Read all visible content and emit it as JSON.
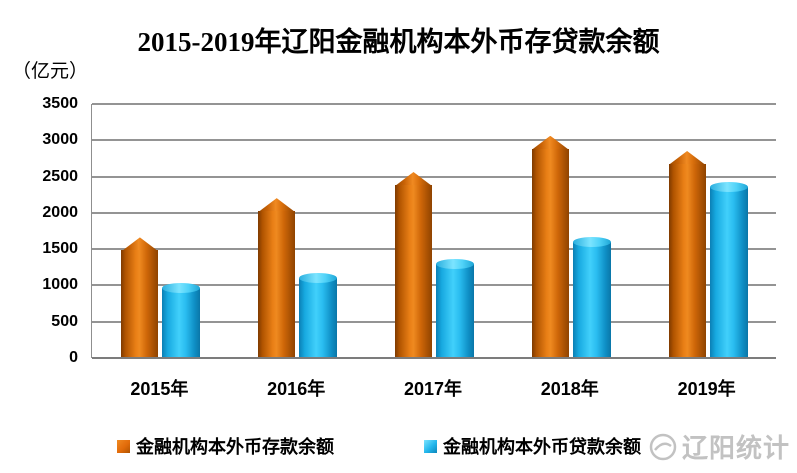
{
  "title": "2015-2019年辽阳金融机构本外币存贷款余额",
  "unit_label": "（亿元）",
  "watermark": {
    "text": "辽阳统计",
    "logo": "circle-swoosh-logo"
  },
  "colors": {
    "deposit_bar": "#E26B0A",
    "loan_bar": "#22B6EC",
    "gridline": "#949494"
  },
  "chart_data": {
    "type": "bar",
    "title": "2015-2019年辽阳金融机构本外币存贷款余额",
    "ylabel": "（亿元）",
    "categories": [
      "2015年",
      "2016年",
      "2017年",
      "2018年",
      "2019年"
    ],
    "series": [
      {
        "name": "金融机构本外币存款余额",
        "color": "#E26B0A",
        "shape": "pencil-3d",
        "values": [
          1580,
          2120,
          2480,
          2980,
          2770
        ]
      },
      {
        "name": "金融机构本外币贷款余额",
        "color": "#22B6EC",
        "shape": "cylinder-3d",
        "values": [
          1000,
          1140,
          1340,
          1640,
          2400
        ]
      }
    ],
    "ylim": [
      0,
      3500
    ],
    "ytick_step": 500,
    "yticks": [
      0,
      500,
      1000,
      1500,
      2000,
      2500,
      3000,
      3500
    ],
    "grid": true,
    "legend_position": "bottom"
  }
}
